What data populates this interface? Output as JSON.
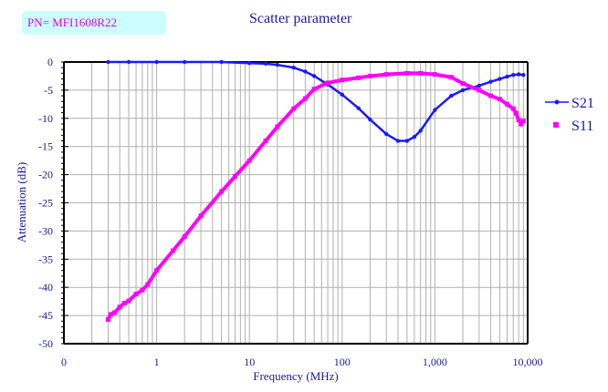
{
  "part_label": "PN= MFI1608R22",
  "chart_data": {
    "type": "scatter",
    "title": "Scatter parameter",
    "xlabel": "Frequency (MHz)",
    "ylabel": "Attenuation (dB)",
    "xscale": "log",
    "xlim": [
      0.1,
      10000
    ],
    "ylim": [
      -50,
      0
    ],
    "xtick_labels": [
      "0",
      "1",
      "10",
      "100",
      "1,000",
      "10,000"
    ],
    "ytick_labels": [
      "0",
      "-5",
      "-10",
      "-15",
      "-20",
      "-25",
      "-30",
      "-35",
      "-40",
      "-45",
      "-50"
    ],
    "grid": true,
    "legend": "right",
    "series": [
      {
        "name": "S21",
        "color": "#1a1aff",
        "marker": "diamond-line",
        "x": [
          0.3,
          0.5,
          1,
          2,
          5,
          10,
          15,
          20,
          30,
          40,
          50,
          70,
          100,
          150,
          200,
          300,
          400,
          500,
          600,
          700,
          1000,
          1500,
          2000,
          3000,
          4000,
          5000,
          6000,
          7000,
          8000,
          9000
        ],
        "y": [
          0,
          0,
          0,
          0,
          0,
          -0.2,
          -0.3,
          -0.5,
          -1,
          -1.7,
          -2.5,
          -4,
          -5.8,
          -8.2,
          -10.2,
          -12.8,
          -14,
          -14,
          -13.3,
          -12.2,
          -8.5,
          -6,
          -5,
          -4.2,
          -3.5,
          -3,
          -2.6,
          -2.3,
          -2.2,
          -2.3
        ]
      },
      {
        "name": "S11",
        "color": "#ff00ff",
        "marker": "square",
        "x": [
          0.3,
          0.32,
          0.35,
          0.4,
          0.45,
          0.5,
          0.6,
          0.7,
          0.8,
          1,
          1.5,
          2,
          3,
          5,
          7,
          10,
          15,
          20,
          30,
          40,
          50,
          70,
          100,
          150,
          200,
          300,
          500,
          700,
          1000,
          1500,
          2000,
          3000,
          4000,
          5000,
          6000,
          7000,
          7500,
          8000,
          8500,
          9000
        ],
        "y": [
          -45.7,
          -44.8,
          -44.5,
          -43.5,
          -42.8,
          -42.4,
          -41.2,
          -40.5,
          -39.5,
          -37,
          -33.5,
          -31,
          -27.3,
          -23,
          -20.3,
          -17.5,
          -14,
          -11.5,
          -8.3,
          -6.5,
          -4.8,
          -3.7,
          -3.2,
          -2.8,
          -2.5,
          -2.2,
          -2,
          -2,
          -2.2,
          -2.7,
          -3.8,
          -5,
          -6,
          -6.6,
          -7.5,
          -8.3,
          -9.1,
          -10.3,
          -11,
          -10.5
        ]
      }
    ]
  }
}
